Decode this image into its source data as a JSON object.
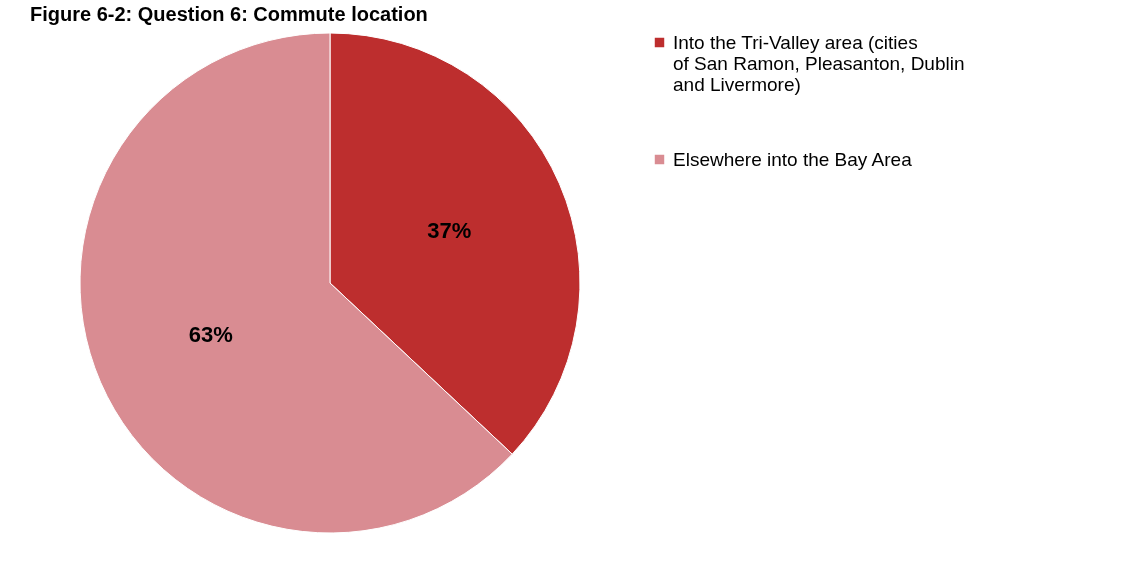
{
  "chart_data": {
    "type": "pie",
    "title": "Figure 6-2: Question 6: Commute location",
    "categories": [
      "Into the Tri-Valley area (cities of San Ramon, Pleasanton, Dublin and Livermore)",
      "Elsewhere into the Bay Area"
    ],
    "values": [
      37,
      63
    ],
    "colors": [
      "#bd2e2e",
      "#d98c92"
    ],
    "value_labels": [
      "37%",
      "63%"
    ],
    "legend": "right"
  }
}
